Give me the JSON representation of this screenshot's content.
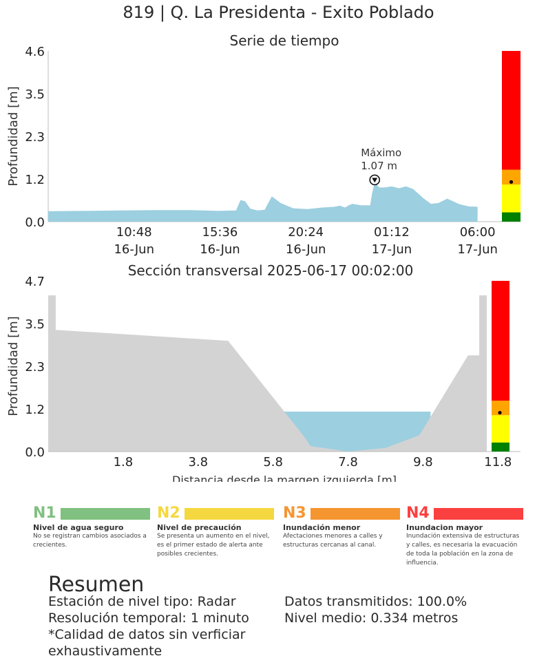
{
  "header": {
    "title": "819 | Q. La Presidenta - Exito Poblado"
  },
  "colors": {
    "water": "#9ccfe0",
    "terrain": "#d3d3d3",
    "alert_green": "#008000",
    "alert_yellow": "#ffff00",
    "alert_orange": "#ffa500",
    "alert_red": "#ff0000",
    "n1": "#80c080",
    "n2": "#f5d840",
    "n3": "#f59530",
    "n4": "#fb4040"
  },
  "chart_data": [
    {
      "type": "area",
      "title": "Serie de tiempo",
      "xlabel": "",
      "ylabel": "Profundidad [m]",
      "yticks": [
        "0.0",
        "1.2",
        "2.3",
        "3.5",
        "4.6"
      ],
      "ylim": [
        0,
        4.6
      ],
      "xticks": [
        {
          "time": "10:48",
          "date": "16-Jun",
          "h": 10.8
        },
        {
          "time": "15:36",
          "date": "16-Jun",
          "h": 15.6
        },
        {
          "time": "20:24",
          "date": "16-Jun",
          "h": 20.4
        },
        {
          "time": "01:12",
          "date": "17-Jun",
          "h": 25.2
        },
        {
          "time": "06:00",
          "date": "17-Jun",
          "h": 30.0
        }
      ],
      "xlim_hours": [
        6.0,
        32.4
      ],
      "series": [
        {
          "x_hours": [
            6.0,
            8.0,
            10.0,
            12.0,
            14.0,
            15.5,
            16.5,
            16.75,
            17.0,
            17.3,
            17.7,
            18.1,
            18.5,
            19.0,
            19.7,
            20.5,
            21.3,
            22.0,
            22.3,
            22.6,
            22.8,
            23.0,
            23.5,
            24.0,
            24.1,
            24.25,
            24.5,
            24.8,
            25.2,
            25.6,
            26.0,
            26.4,
            27.0,
            27.4,
            27.8,
            28.3,
            29.0,
            29.5,
            30.0
          ],
          "y": [
            0.28,
            0.29,
            0.3,
            0.31,
            0.31,
            0.29,
            0.3,
            0.58,
            0.55,
            0.35,
            0.3,
            0.32,
            0.68,
            0.5,
            0.36,
            0.34,
            0.38,
            0.4,
            0.43,
            0.38,
            0.44,
            0.48,
            0.44,
            0.44,
            0.75,
            1.07,
            0.92,
            0.92,
            0.95,
            0.9,
            0.95,
            0.88,
            0.62,
            0.48,
            0.5,
            0.62,
            0.47,
            0.41,
            0.4
          ]
        }
      ],
      "annotation": {
        "label": "Máximo",
        "value": "1.07 m",
        "x_hours": 24.25,
        "y": 1.07
      },
      "alert_bar": [
        {
          "from": 0,
          "to": 0.25,
          "color": "#008000"
        },
        {
          "from": 0.25,
          "to": 1.0,
          "color": "#ffff00"
        },
        {
          "from": 1.0,
          "to": 1.4,
          "color": "#ffa500"
        },
        {
          "from": 1.4,
          "to": 4.6,
          "color": "#ff0000"
        }
      ],
      "current_level": 1.07
    },
    {
      "type": "area",
      "title": "Sección transversal 2025-06-17 00:02:00",
      "xlabel": "Distancia desde la margen izquierda [m]",
      "ylabel": "Profundidad [m]",
      "xticks": [
        "1.8",
        "3.8",
        "5.8",
        "7.8",
        "9.8",
        "11.8"
      ],
      "yticks": [
        "0.0",
        "1.2",
        "2.3",
        "3.5",
        "4.7"
      ],
      "xlim": [
        -0.2,
        12.4
      ],
      "ylim": [
        0,
        4.7
      ],
      "terrain_x": [
        -0.2,
        0.0,
        0.0,
        4.6,
        6.6,
        6.8,
        7.8,
        8.8,
        9.7,
        11.0,
        11.3,
        11.3,
        11.5,
        11.5
      ],
      "terrain_y": [
        4.3,
        4.3,
        3.35,
        3.05,
        0.45,
        0.15,
        0.0,
        0.1,
        0.45,
        2.65,
        2.65,
        4.3,
        4.3,
        0.0
      ],
      "water_level": 1.1,
      "alert_bar": [
        {
          "from": 0,
          "to": 0.25,
          "color": "#008000"
        },
        {
          "from": 0.25,
          "to": 1.0,
          "color": "#ffff00"
        },
        {
          "from": 1.0,
          "to": 1.4,
          "color": "#ffa500"
        },
        {
          "from": 1.4,
          "to": 4.7,
          "color": "#ff0000"
        }
      ],
      "current_level": 1.07
    }
  ],
  "legend": [
    {
      "code": "N1",
      "title": "Nivel de agua seguro",
      "desc": "No se registran cambios asociados a crecientes."
    },
    {
      "code": "N2",
      "title": "Nivel de precaución",
      "desc": "Se presenta un aumento en el nivel, es el primer estado de alerta ante posibles crecientes."
    },
    {
      "code": "N3",
      "title": "Inundación menor",
      "desc": "Afectaciones menores a calles y estructuras cercanas al canal."
    },
    {
      "code": "N4",
      "title": "Inundacion mayor",
      "desc": "Inundación extensiva de estructuras y calles, es necesaria la evacuación de toda la población en la zona de influencia."
    }
  ],
  "summary": {
    "title": "Resumen",
    "station": "Estación de nivel tipo: Radar",
    "resolution": "Resolución temporal: 1 minuto",
    "quality": "*Calidad de datos sin verficiar exhaustivamente",
    "transmitted": "Datos transmitidos: 100.0%",
    "mean_level": "Nivel medio: 0.334 metros"
  }
}
